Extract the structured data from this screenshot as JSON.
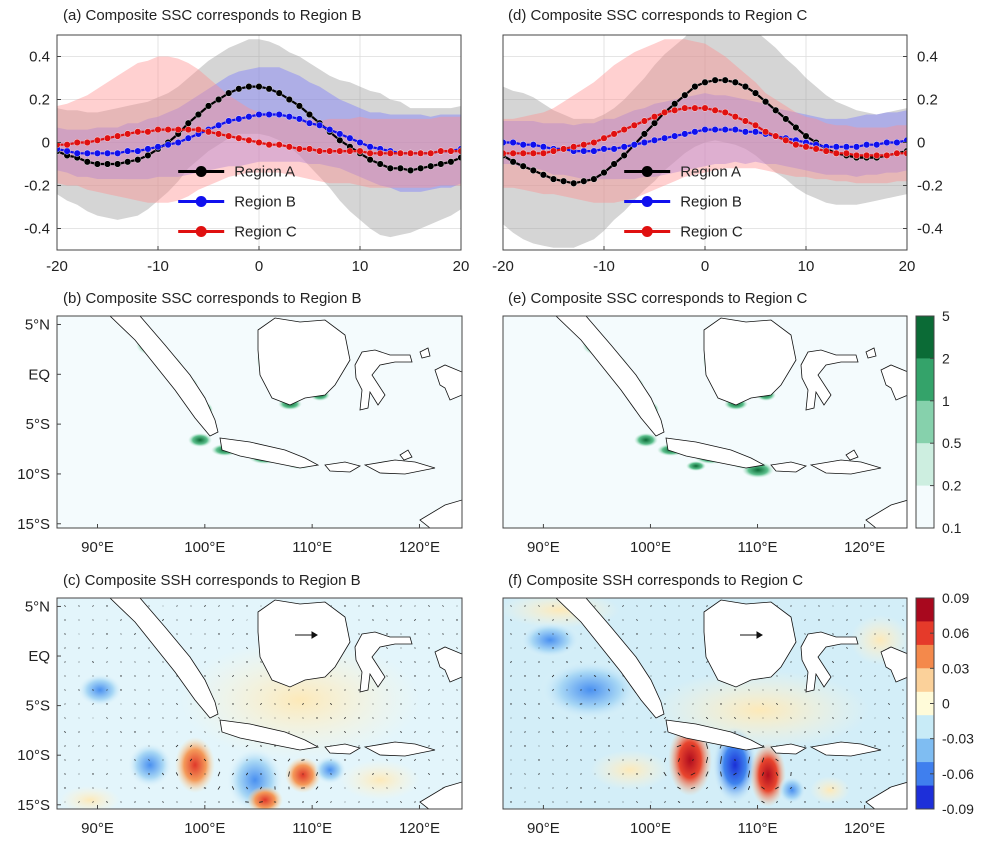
{
  "chart_data": [
    {
      "id": "a",
      "type": "line",
      "title": "(a) Composite SSC corresponds to Region B",
      "xlim": [
        -20,
        20
      ],
      "ylim": [
        -0.5,
        0.5
      ],
      "xticks": [
        "-20",
        "-10",
        "0",
        "10",
        "20"
      ],
      "yticks": [
        "0.4",
        "0.2",
        "0",
        "-0.2",
        "-0.4"
      ],
      "yaxis_side": "left",
      "grid": true,
      "legend_position": "bottom-center",
      "x": [
        -20,
        -19,
        -18,
        -17,
        -16,
        -15,
        -14,
        -13,
        -12,
        -11,
        -10,
        -9,
        -8,
        -7,
        -6,
        -5,
        -4,
        -3,
        -2,
        -1,
        0,
        1,
        2,
        3,
        4,
        5,
        6,
        7,
        8,
        9,
        10,
        11,
        12,
        13,
        14,
        15,
        16,
        17,
        18,
        19,
        20
      ],
      "series": [
        {
          "name": "Region A",
          "color": "#000000",
          "band_color": "#9a9a9a",
          "values": [
            -0.04,
            -0.06,
            -0.07,
            -0.09,
            -0.1,
            -0.1,
            -0.1,
            -0.09,
            -0.08,
            -0.06,
            -0.03,
            0.0,
            0.04,
            0.09,
            0.13,
            0.17,
            0.2,
            0.23,
            0.25,
            0.26,
            0.26,
            0.25,
            0.23,
            0.2,
            0.17,
            0.13,
            0.09,
            0.05,
            0.01,
            -0.02,
            -0.05,
            -0.08,
            -0.1,
            -0.12,
            -0.12,
            -0.13,
            -0.12,
            -0.11,
            -0.1,
            -0.09,
            -0.07
          ],
          "spread": [
            0.2,
            0.21,
            0.22,
            0.23,
            0.24,
            0.25,
            0.26,
            0.26,
            0.26,
            0.25,
            0.24,
            0.23,
            0.22,
            0.21,
            0.21,
            0.21,
            0.21,
            0.21,
            0.21,
            0.22,
            0.22,
            0.22,
            0.22,
            0.22,
            0.23,
            0.24,
            0.25,
            0.26,
            0.28,
            0.3,
            0.31,
            0.32,
            0.33,
            0.32,
            0.31,
            0.29,
            0.28,
            0.27,
            0.26,
            0.25,
            0.24
          ]
        },
        {
          "name": "Region B",
          "color": "#1010ee",
          "band_color": "#7a7aff",
          "values": [
            -0.03,
            -0.04,
            -0.05,
            -0.05,
            -0.05,
            -0.05,
            -0.05,
            -0.04,
            -0.04,
            -0.03,
            -0.02,
            -0.01,
            0.0,
            0.02,
            0.04,
            0.06,
            0.08,
            0.1,
            0.11,
            0.12,
            0.13,
            0.13,
            0.13,
            0.12,
            0.11,
            0.09,
            0.08,
            0.06,
            0.04,
            0.02,
            0.0,
            -0.02,
            -0.03,
            -0.04,
            -0.05,
            -0.05,
            -0.05,
            -0.05,
            -0.04,
            -0.04,
            -0.03
          ],
          "spread": [
            0.1,
            0.1,
            0.11,
            0.11,
            0.12,
            0.12,
            0.12,
            0.13,
            0.13,
            0.14,
            0.14,
            0.15,
            0.16,
            0.17,
            0.18,
            0.19,
            0.2,
            0.21,
            0.22,
            0.22,
            0.22,
            0.22,
            0.22,
            0.21,
            0.2,
            0.19,
            0.18,
            0.17,
            0.16,
            0.16,
            0.16,
            0.16,
            0.17,
            0.17,
            0.18,
            0.18,
            0.18,
            0.17,
            0.17,
            0.17,
            0.16
          ]
        },
        {
          "name": "Region C",
          "color": "#e01010",
          "band_color": "#ff8e8e",
          "values": [
            -0.01,
            -0.01,
            0.0,
            0.0,
            0.01,
            0.02,
            0.03,
            0.04,
            0.05,
            0.05,
            0.06,
            0.06,
            0.06,
            0.06,
            0.06,
            0.05,
            0.04,
            0.03,
            0.02,
            0.01,
            0.0,
            -0.01,
            -0.01,
            -0.02,
            -0.03,
            -0.03,
            -0.04,
            -0.04,
            -0.04,
            -0.04,
            -0.04,
            -0.05,
            -0.05,
            -0.05,
            -0.05,
            -0.05,
            -0.05,
            -0.05,
            -0.04,
            -0.04,
            -0.04
          ],
          "spread": [
            0.18,
            0.19,
            0.2,
            0.22,
            0.24,
            0.26,
            0.28,
            0.3,
            0.32,
            0.33,
            0.34,
            0.34,
            0.33,
            0.31,
            0.28,
            0.25,
            0.22,
            0.19,
            0.17,
            0.15,
            0.14,
            0.13,
            0.13,
            0.13,
            0.13,
            0.14,
            0.14,
            0.15,
            0.15,
            0.15,
            0.16,
            0.16,
            0.16,
            0.16,
            0.16,
            0.16,
            0.16,
            0.16,
            0.16,
            0.16,
            0.16
          ]
        }
      ]
    },
    {
      "id": "d",
      "type": "line",
      "title": "(d) Composite SSC corresponds to Region C",
      "xlim": [
        -20,
        20
      ],
      "ylim": [
        -0.5,
        0.5
      ],
      "xticks": [
        "-20",
        "-10",
        "0",
        "10",
        "20"
      ],
      "yticks": [
        "0.4",
        "0.2",
        "0",
        "-0.2",
        "-0.4"
      ],
      "yaxis_side": "right",
      "grid": true,
      "legend_position": "bottom-center",
      "x": [
        -20,
        -19,
        -18,
        -17,
        -16,
        -15,
        -14,
        -13,
        -12,
        -11,
        -10,
        -9,
        -8,
        -7,
        -6,
        -5,
        -4,
        -3,
        -2,
        -1,
        0,
        1,
        2,
        3,
        4,
        5,
        6,
        7,
        8,
        9,
        10,
        11,
        12,
        13,
        14,
        15,
        16,
        17,
        18,
        19,
        20
      ],
      "series": [
        {
          "name": "Region A",
          "color": "#000000",
          "band_color": "#9a9a9a",
          "values": [
            -0.06,
            -0.09,
            -0.11,
            -0.13,
            -0.15,
            -0.17,
            -0.18,
            -0.19,
            -0.18,
            -0.17,
            -0.14,
            -0.1,
            -0.06,
            -0.01,
            0.04,
            0.09,
            0.14,
            0.18,
            0.22,
            0.26,
            0.28,
            0.29,
            0.29,
            0.28,
            0.26,
            0.23,
            0.19,
            0.15,
            0.11,
            0.07,
            0.03,
            0.0,
            -0.03,
            -0.05,
            -0.06,
            -0.07,
            -0.07,
            -0.07,
            -0.06,
            -0.05,
            -0.04
          ],
          "spread": [
            0.32,
            0.33,
            0.34,
            0.34,
            0.33,
            0.32,
            0.31,
            0.3,
            0.29,
            0.28,
            0.27,
            0.26,
            0.26,
            0.26,
            0.26,
            0.27,
            0.27,
            0.27,
            0.27,
            0.28,
            0.28,
            0.28,
            0.29,
            0.29,
            0.29,
            0.29,
            0.29,
            0.29,
            0.28,
            0.28,
            0.27,
            0.26,
            0.25,
            0.24,
            0.23,
            0.22,
            0.21,
            0.2,
            0.2,
            0.2,
            0.2
          ]
        },
        {
          "name": "Region B",
          "color": "#1010ee",
          "band_color": "#7a7aff",
          "values": [
            0.0,
            0.0,
            -0.01,
            -0.01,
            -0.02,
            -0.03,
            -0.03,
            -0.04,
            -0.04,
            -0.04,
            -0.03,
            -0.03,
            -0.02,
            -0.01,
            0.0,
            0.01,
            0.02,
            0.03,
            0.04,
            0.05,
            0.06,
            0.06,
            0.06,
            0.06,
            0.05,
            0.05,
            0.04,
            0.03,
            0.02,
            0.01,
            0.0,
            -0.01,
            -0.02,
            -0.02,
            -0.02,
            -0.02,
            -0.01,
            -0.01,
            0.0,
            0.0,
            0.01
          ],
          "spread": [
            0.1,
            0.1,
            0.11,
            0.11,
            0.11,
            0.12,
            0.12,
            0.12,
            0.13,
            0.13,
            0.14,
            0.14,
            0.15,
            0.16,
            0.16,
            0.17,
            0.17,
            0.17,
            0.17,
            0.17,
            0.17,
            0.16,
            0.16,
            0.15,
            0.15,
            0.14,
            0.14,
            0.13,
            0.13,
            0.13,
            0.13,
            0.13,
            0.13,
            0.13,
            0.13,
            0.14,
            0.14,
            0.14,
            0.14,
            0.14,
            0.14
          ]
        },
        {
          "name": "Region C",
          "color": "#e01010",
          "band_color": "#ff8e8e",
          "values": [
            -0.05,
            -0.05,
            -0.05,
            -0.05,
            -0.05,
            -0.04,
            -0.03,
            -0.02,
            -0.01,
            0.0,
            0.02,
            0.04,
            0.06,
            0.08,
            0.1,
            0.12,
            0.14,
            0.15,
            0.16,
            0.16,
            0.16,
            0.15,
            0.14,
            0.12,
            0.1,
            0.08,
            0.05,
            0.03,
            0.01,
            -0.01,
            -0.02,
            -0.03,
            -0.04,
            -0.05,
            -0.05,
            -0.06,
            -0.06,
            -0.06,
            -0.06,
            -0.05,
            -0.05
          ],
          "spread": [
            0.16,
            0.16,
            0.17,
            0.18,
            0.19,
            0.2,
            0.22,
            0.24,
            0.26,
            0.28,
            0.3,
            0.32,
            0.33,
            0.34,
            0.34,
            0.34,
            0.34,
            0.33,
            0.32,
            0.31,
            0.3,
            0.28,
            0.26,
            0.24,
            0.22,
            0.2,
            0.18,
            0.17,
            0.16,
            0.15,
            0.14,
            0.14,
            0.13,
            0.13,
            0.13,
            0.13,
            0.13,
            0.13,
            0.13,
            0.13,
            0.13
          ]
        }
      ]
    },
    {
      "id": "b",
      "type": "heatmap",
      "title": "(b) Composite SSC corresponds to Region B",
      "map_variable": "SSC",
      "xticks": [
        "90°E",
        "100°E",
        "110°E",
        "120°E"
      ],
      "yticks": [
        "5°N",
        "EQ",
        "5°S",
        "10°S",
        "15°S"
      ],
      "colorbar": "none"
    },
    {
      "id": "e",
      "type": "heatmap",
      "title": "(e) Composite SSC corresponds to Region C",
      "map_variable": "SSC",
      "xticks": [
        "90°E",
        "100°E",
        "110°E",
        "120°E"
      ],
      "yticks": [],
      "colorbar": {
        "scale": "log",
        "colors": [
          "#f4fbfd",
          "#cdeee0",
          "#86d1ac",
          "#34a36a",
          "#0b6b36"
        ],
        "ticks": [
          "5",
          "2",
          "1",
          "0.5",
          "0.2",
          "0.1"
        ]
      }
    },
    {
      "id": "c",
      "type": "heatmap",
      "title": "(c) Composite SSH corresponds to Region B",
      "map_variable": "SSH",
      "overlay": "velocity vectors",
      "xticks": [
        "90°E",
        "100°E",
        "110°E",
        "120°E"
      ],
      "yticks": [
        "5°N",
        "EQ",
        "5°S",
        "10°S",
        "15°S"
      ],
      "colorbar": "none"
    },
    {
      "id": "f",
      "type": "heatmap",
      "title": "(f) Composite SSH corresponds to Region C",
      "map_variable": "SSH",
      "overlay": "velocity vectors",
      "xticks": [
        "90°E",
        "100°E",
        "110°E",
        "120°E"
      ],
      "yticks": [],
      "colorbar": {
        "scale": "linear",
        "range": [
          -0.09,
          0.09
        ],
        "colors": [
          "#1d2fd9",
          "#3f7fee",
          "#7fbdf2",
          "#c8ebf7",
          "#fffbd9",
          "#fbd19a",
          "#f4894b",
          "#e53a2a",
          "#a8081e"
        ],
        "ticks": [
          "0.09",
          "0.06",
          "0.03",
          "0",
          "-0.03",
          "-0.06",
          "-0.09"
        ]
      }
    }
  ]
}
